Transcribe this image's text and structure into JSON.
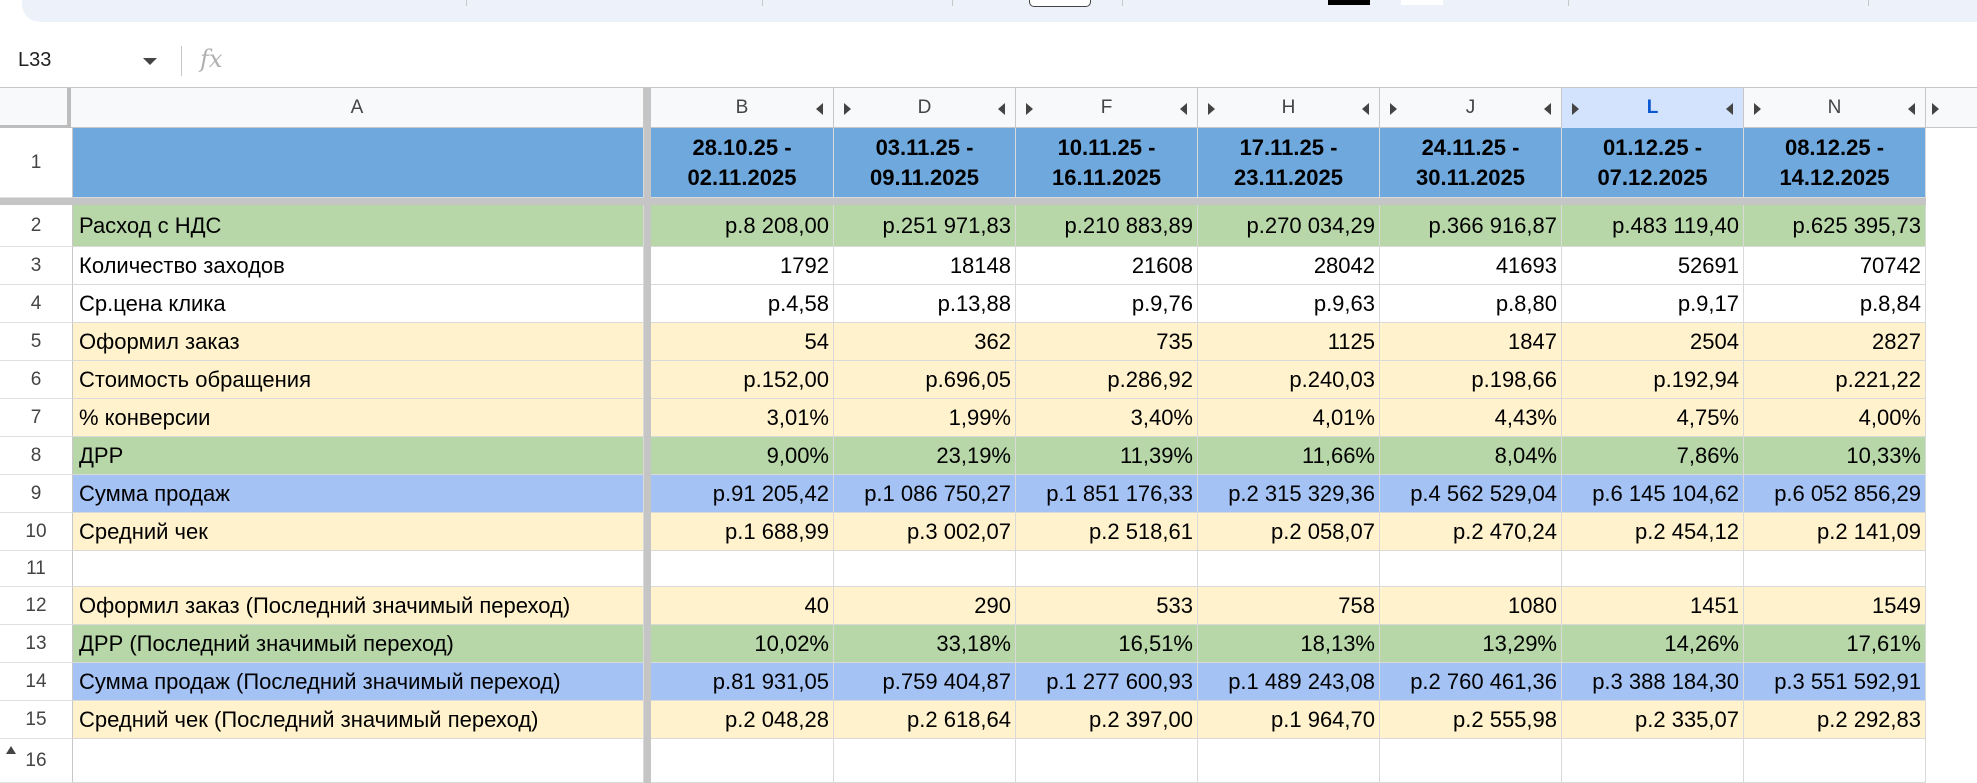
{
  "toolbar": {},
  "formula_bar": {
    "cell_ref": "L33",
    "fx_label": "fx",
    "formula": ""
  },
  "columns": [
    {
      "letter": "A"
    },
    {
      "letter": "B"
    },
    {
      "letter": "D"
    },
    {
      "letter": "F"
    },
    {
      "letter": "H"
    },
    {
      "letter": "J"
    },
    {
      "letter": "L"
    },
    {
      "letter": "N"
    }
  ],
  "header_row": {
    "row_number": "1",
    "a": "",
    "dates": [
      [
        "28.10.25 -",
        "02.11.2025"
      ],
      [
        "03.11.25 -",
        "09.11.2025"
      ],
      [
        "10.11.25 -",
        "16.11.2025"
      ],
      [
        "17.11.25 -",
        "23.11.2025"
      ],
      [
        "24.11.25 -",
        "30.11.2025"
      ],
      [
        "01.12.25 -",
        "07.12.2025"
      ],
      [
        "08.12.25 -",
        "14.12.2025"
      ]
    ]
  },
  "rows": [
    {
      "n": "2",
      "label": "Расход с НДС",
      "fill": "#b7d7a8",
      "values": [
        "р.8 208,00",
        "р.251 971,83",
        "р.210 883,89",
        "р.270 034,29",
        "р.366 916,87",
        "р.483 119,40",
        "р.625 395,73"
      ]
    },
    {
      "n": "3",
      "label": "Количество заходов",
      "fill": "#ffffff",
      "values": [
        "1792",
        "18148",
        "21608",
        "28042",
        "41693",
        "52691",
        "70742"
      ]
    },
    {
      "n": "4",
      "label": "Ср.цена клика",
      "fill": "#ffffff",
      "values": [
        "р.4,58",
        "р.13,88",
        "р.9,76",
        "р.9,63",
        "р.8,80",
        "р.9,17",
        "р.8,84"
      ]
    },
    {
      "n": "5",
      "label": "Оформил заказ",
      "fill": "#fff2cc",
      "values": [
        "54",
        "362",
        "735",
        "1125",
        "1847",
        "2504",
        "2827"
      ]
    },
    {
      "n": "6",
      "label": "Стоимость обращения",
      "fill": "#fff2cc",
      "values": [
        "р.152,00",
        "р.696,05",
        "р.286,92",
        "р.240,03",
        "р.198,66",
        "р.192,94",
        "р.221,22"
      ]
    },
    {
      "n": "7",
      "label": "% конверсии",
      "fill": "#fff2cc",
      "values": [
        "3,01%",
        "1,99%",
        "3,40%",
        "4,01%",
        "4,43%",
        "4,75%",
        "4,00%"
      ]
    },
    {
      "n": "8",
      "label": "ДРР",
      "fill": "#b7d7a8",
      "values": [
        "9,00%",
        "23,19%",
        "11,39%",
        "11,66%",
        "8,04%",
        "7,86%",
        "10,33%"
      ]
    },
    {
      "n": "9",
      "label": "Сумма продаж",
      "fill": "#a4c2f4",
      "values": [
        "р.91 205,42",
        "р.1 086 750,27",
        "р.1 851 176,33",
        "р.2 315 329,36",
        "р.4 562 529,04",
        "р.6 145 104,62",
        "р.6 052 856,29"
      ]
    },
    {
      "n": "10",
      "label": "Средний чек",
      "fill": "#fff2cc",
      "values": [
        "р.1 688,99",
        "р.3 002,07",
        "р.2 518,61",
        "р.2 058,07",
        "р.2 470,24",
        "р.2 454,12",
        "р.2 141,09"
      ]
    },
    {
      "n": "11",
      "label": "",
      "fill": "#ffffff",
      "values": [
        "",
        "",
        "",
        "",
        "",
        "",
        ""
      ]
    },
    {
      "n": "12",
      "label": "Оформил заказ (Последний значимый переход)",
      "fill": "#fff2cc",
      "values": [
        "40",
        "290",
        "533",
        "758",
        "1080",
        "1451",
        "1549"
      ]
    },
    {
      "n": "13",
      "label": "ДРР (Последний значимый переход)",
      "fill": "#b7d7a8",
      "values": [
        "10,02%",
        "33,18%",
        "16,51%",
        "18,13%",
        "13,29%",
        "14,26%",
        "17,61%"
      ]
    },
    {
      "n": "14",
      "label": "Сумма продаж (Последний значимый переход)",
      "fill": "#a4c2f4",
      "values": [
        "р.81 931,05",
        "р.759 404,87",
        "р.1 277 600,93",
        "р.1 489 243,08",
        "р.2 760 461,36",
        "р.3 388 184,30",
        "р.3 551 592,91"
      ]
    },
    {
      "n": "15",
      "label": "Средний чек (Последний значимый переход)",
      "fill": "#fff2cc",
      "values": [
        "р.2 048,28",
        "р.2 618,64",
        "р.2 397,00",
        "р.1 964,70",
        "р.2 555,98",
        "р.2 335,07",
        "р.2 292,83"
      ]
    },
    {
      "n": "16",
      "label": "",
      "fill": "#ffffff",
      "values": [
        "",
        "",
        "",
        "",
        "",
        "",
        ""
      ]
    }
  ],
  "colors": {
    "header_fill": "#6fa8dc",
    "green_fill": "#b7d7a8",
    "yellow_fill": "#fff2cc",
    "blue_fill": "#a4c2f4",
    "selected_column": "#d3e3fd",
    "selection_accent": "#0b57d0"
  },
  "selected_column": "L"
}
